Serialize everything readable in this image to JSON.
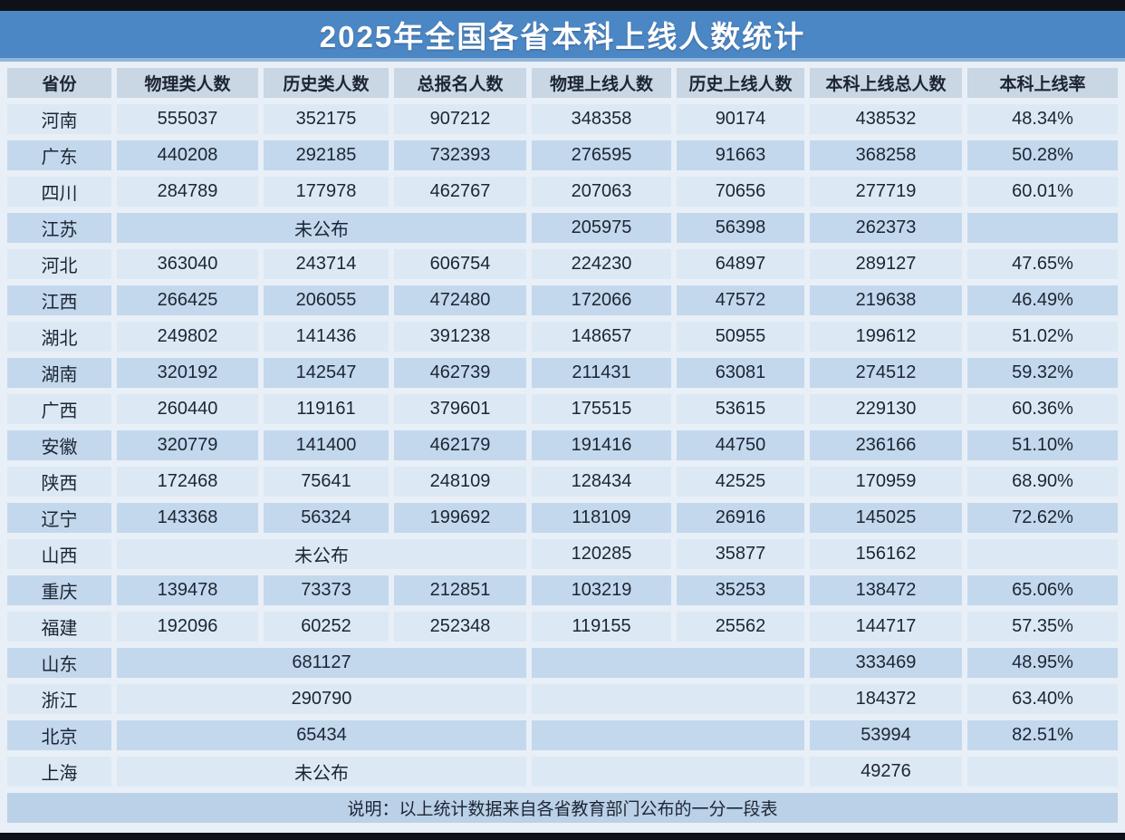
{
  "chart_data": {
    "type": "table",
    "title": "2025年全国各省本科上线人数统计",
    "columns": [
      "省份",
      "物理类人数",
      "历史类人数",
      "总报名人数",
      "物理上线人数",
      "历史上线人数",
      "本科上线总人数",
      "本科上线率"
    ],
    "rows": [
      {
        "province": "河南",
        "cells": [
          {
            "t": "555037"
          },
          {
            "t": "352175"
          },
          {
            "t": "907212"
          },
          {
            "t": "348358"
          },
          {
            "t": "90174"
          },
          {
            "t": "438532"
          },
          {
            "t": "48.34%"
          }
        ]
      },
      {
        "province": "广东",
        "cells": [
          {
            "t": "440208"
          },
          {
            "t": "292185"
          },
          {
            "t": "732393"
          },
          {
            "t": "276595"
          },
          {
            "t": "91663"
          },
          {
            "t": "368258"
          },
          {
            "t": "50.28%"
          }
        ]
      },
      {
        "province": "四川",
        "cells": [
          {
            "t": "284789"
          },
          {
            "t": "177978"
          },
          {
            "t": "462767"
          },
          {
            "t": "207063"
          },
          {
            "t": "70656"
          },
          {
            "t": "277719"
          },
          {
            "t": "60.01%"
          }
        ]
      },
      {
        "province": "江苏",
        "cells": [
          {
            "t": "未公布",
            "s": 3
          },
          {
            "t": "205975"
          },
          {
            "t": "56398"
          },
          {
            "t": "262373"
          },
          {
            "t": ""
          }
        ]
      },
      {
        "province": "河北",
        "cells": [
          {
            "t": "363040"
          },
          {
            "t": "243714"
          },
          {
            "t": "606754"
          },
          {
            "t": "224230"
          },
          {
            "t": "64897"
          },
          {
            "t": "289127"
          },
          {
            "t": "47.65%"
          }
        ]
      },
      {
        "province": "江西",
        "cells": [
          {
            "t": "266425"
          },
          {
            "t": "206055"
          },
          {
            "t": "472480"
          },
          {
            "t": "172066"
          },
          {
            "t": "47572"
          },
          {
            "t": "219638"
          },
          {
            "t": "46.49%"
          }
        ]
      },
      {
        "province": "湖北",
        "cells": [
          {
            "t": "249802"
          },
          {
            "t": "141436"
          },
          {
            "t": "391238"
          },
          {
            "t": "148657"
          },
          {
            "t": "50955"
          },
          {
            "t": "199612"
          },
          {
            "t": "51.02%"
          }
        ]
      },
      {
        "province": "湖南",
        "cells": [
          {
            "t": "320192"
          },
          {
            "t": "142547"
          },
          {
            "t": "462739"
          },
          {
            "t": "211431"
          },
          {
            "t": "63081"
          },
          {
            "t": "274512"
          },
          {
            "t": "59.32%"
          }
        ]
      },
      {
        "province": "广西",
        "cells": [
          {
            "t": "260440"
          },
          {
            "t": "119161"
          },
          {
            "t": "379601"
          },
          {
            "t": "175515"
          },
          {
            "t": "53615"
          },
          {
            "t": "229130"
          },
          {
            "t": "60.36%"
          }
        ]
      },
      {
        "province": "安徽",
        "cells": [
          {
            "t": "320779"
          },
          {
            "t": "141400"
          },
          {
            "t": "462179"
          },
          {
            "t": "191416"
          },
          {
            "t": "44750"
          },
          {
            "t": "236166"
          },
          {
            "t": "51.10%"
          }
        ]
      },
      {
        "province": "陕西",
        "cells": [
          {
            "t": "172468"
          },
          {
            "t": "75641"
          },
          {
            "t": "248109"
          },
          {
            "t": "128434"
          },
          {
            "t": "42525"
          },
          {
            "t": "170959"
          },
          {
            "t": "68.90%"
          }
        ]
      },
      {
        "province": "辽宁",
        "cells": [
          {
            "t": "143368"
          },
          {
            "t": "56324"
          },
          {
            "t": "199692"
          },
          {
            "t": "118109"
          },
          {
            "t": "26916"
          },
          {
            "t": "145025"
          },
          {
            "t": "72.62%"
          }
        ]
      },
      {
        "province": "山西",
        "cells": [
          {
            "t": "未公布",
            "s": 3
          },
          {
            "t": "120285"
          },
          {
            "t": "35877"
          },
          {
            "t": "156162"
          },
          {
            "t": ""
          }
        ]
      },
      {
        "province": "重庆",
        "cells": [
          {
            "t": "139478"
          },
          {
            "t": "73373"
          },
          {
            "t": "212851"
          },
          {
            "t": "103219"
          },
          {
            "t": "35253"
          },
          {
            "t": "138472"
          },
          {
            "t": "65.06%"
          }
        ]
      },
      {
        "province": "福建",
        "cells": [
          {
            "t": "192096"
          },
          {
            "t": "60252"
          },
          {
            "t": "252348"
          },
          {
            "t": "119155"
          },
          {
            "t": "25562"
          },
          {
            "t": "144717"
          },
          {
            "t": "57.35%"
          }
        ]
      },
      {
        "province": "山东",
        "cells": [
          {
            "t": "681127",
            "s": 3
          },
          {
            "t": "",
            "s": 2
          },
          {
            "t": "333469"
          },
          {
            "t": "48.95%"
          }
        ]
      },
      {
        "province": "浙江",
        "cells": [
          {
            "t": "290790",
            "s": 3
          },
          {
            "t": "",
            "s": 2
          },
          {
            "t": "184372"
          },
          {
            "t": "63.40%"
          }
        ]
      },
      {
        "province": "北京",
        "cells": [
          {
            "t": "65434",
            "s": 3
          },
          {
            "t": "",
            "s": 2
          },
          {
            "t": "53994"
          },
          {
            "t": "82.51%"
          }
        ]
      },
      {
        "province": "上海",
        "cells": [
          {
            "t": "未公布",
            "s": 3
          },
          {
            "t": "",
            "s": 2
          },
          {
            "t": "49276"
          },
          {
            "t": ""
          }
        ]
      }
    ],
    "footer_note": "说明：以上统计数据来自各省教育部门公布的一分一段表"
  },
  "colors": {
    "title_bar": "#4c87c5",
    "title_edge": "#93b7da",
    "header_bg": "#c9d6e4",
    "row_light": "#dce9f5",
    "row_dark": "#c3d8ec",
    "footer_bg": "#bad1e7",
    "gap_bg": "#e8eff7",
    "text_dark": "#1d2534",
    "title_text": "#ffffff",
    "edge_dark": "#0e1118"
  }
}
